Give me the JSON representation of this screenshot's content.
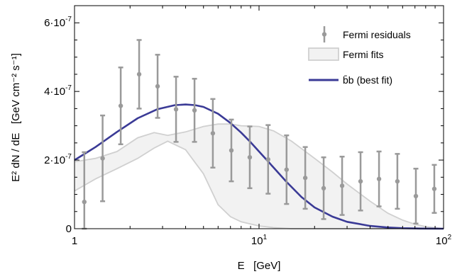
{
  "chart_data": {
    "type": "scatter",
    "x_scale": "log",
    "xlim": [
      1,
      100
    ],
    "ylim": [
      0,
      6.5e-07
    ],
    "xlabel": "E   [GeV]",
    "ylabel": "E² dN / dE   [GeV cm⁻² s⁻¹]",
    "x_ticks": [
      {
        "value": 1,
        "base": "1",
        "exp": ""
      },
      {
        "value": 10,
        "base": "10",
        "exp": "1"
      },
      {
        "value": 100,
        "base": "10",
        "exp": "2"
      }
    ],
    "y_ticks": [
      {
        "value": 0,
        "base": "0",
        "exp": ""
      },
      {
        "value": 2e-07,
        "base": "2·10",
        "exp": "-7"
      },
      {
        "value": 4e-07,
        "base": "4·10",
        "exp": "-7"
      },
      {
        "value": 6e-07,
        "base": "6·10",
        "exp": "-7"
      }
    ],
    "grid": false,
    "legend_position": "top-right",
    "colors": {
      "residuals": "#9a9a9a",
      "fits_fill": "#f2f2f2",
      "fits_edge": "#d0d0d0",
      "best_fit": "#3a3a96"
    },
    "series": [
      {
        "name": "Fermi residuals",
        "kind": "errorbar",
        "x": [
          1.13,
          1.42,
          1.78,
          2.24,
          2.82,
          3.55,
          4.47,
          5.62,
          7.08,
          8.91,
          11.2,
          14.1,
          17.8,
          22.4,
          28.2,
          35.5,
          44.7,
          56.2,
          70.8,
          89.1
        ],
        "y": [
          7.8e-08,
          2.05e-07,
          3.58e-07,
          4.5e-07,
          4.15e-07,
          3.48e-07,
          3.45e-07,
          2.78e-07,
          2.28e-07,
          2.08e-07,
          2.02e-07,
          1.72e-07,
          1.48e-07,
          1.18e-07,
          1.25e-07,
          1.38e-07,
          1.45e-07,
          1.38e-07,
          9.5e-08,
          1.16e-07
        ],
        "y_err": [
          1.45e-07,
          1.25e-07,
          1.12e-07,
          1e-07,
          9.2e-08,
          9.5e-08,
          9.2e-08,
          1e-07,
          9e-08,
          9e-08,
          1e-07,
          1e-07,
          9e-08,
          9e-08,
          8.5e-08,
          8.5e-08,
          8e-08,
          8e-08,
          8e-08,
          7e-08
        ]
      },
      {
        "name": "Fermi fits",
        "kind": "band",
        "x": [
          1.0,
          1.3,
          1.7,
          2.2,
          2.7,
          3.2,
          4.0,
          5.0,
          6.0,
          7.0,
          8.0,
          10.0,
          12.0,
          15.0,
          20.0,
          25.0,
          30.0,
          40.0,
          50.0,
          60.0,
          70.0,
          80.0,
          100.0
        ],
        "upper": [
          1.95e-07,
          2.05e-07,
          2.25e-07,
          2.65e-07,
          2.8e-07,
          2.72e-07,
          2.82e-07,
          2.98e-07,
          3.05e-07,
          3.05e-07,
          3e-07,
          2.98e-07,
          2.85e-07,
          2.55e-07,
          2.05e-07,
          1.65e-07,
          1.3e-07,
          8e-08,
          4.5e-08,
          2.5e-08,
          1.3e-08,
          6e-09,
          0.0
        ],
        "lower": [
          1.1e-07,
          1.45e-07,
          1.75e-07,
          2.05e-07,
          2.35e-07,
          2.55e-07,
          2.3e-07,
          1.6e-07,
          7e-08,
          3.5e-08,
          2e-08,
          8e-09,
          3e-09,
          0.0,
          0.0,
          0.0,
          0.0,
          0.0,
          0.0,
          0.0,
          0.0,
          0.0,
          0.0
        ]
      },
      {
        "name": "b̄b (best fit)",
        "kind": "line",
        "x": [
          1.0,
          1.3,
          1.7,
          2.2,
          2.8,
          3.5,
          4.0,
          4.5,
          5.0,
          6.0,
          7.0,
          8.0,
          9.0,
          10.0,
          12.0,
          14.0,
          17.0,
          20.0,
          25.0,
          30.0,
          40.0,
          50.0,
          60.0,
          75.0,
          100.0
        ],
        "y": [
          2e-07,
          2.38e-07,
          2.82e-07,
          3.22e-07,
          3.48e-07,
          3.6e-07,
          3.62e-07,
          3.6e-07,
          3.55e-07,
          3.35e-07,
          3.08e-07,
          2.8e-07,
          2.52e-07,
          2.25e-07,
          1.78e-07,
          1.38e-07,
          9.2e-08,
          6.2e-08,
          3.5e-08,
          2e-08,
          8e-09,
          3.5e-09,
          1.5e-09,
          5e-10,
          0.0
        ]
      }
    ]
  }
}
